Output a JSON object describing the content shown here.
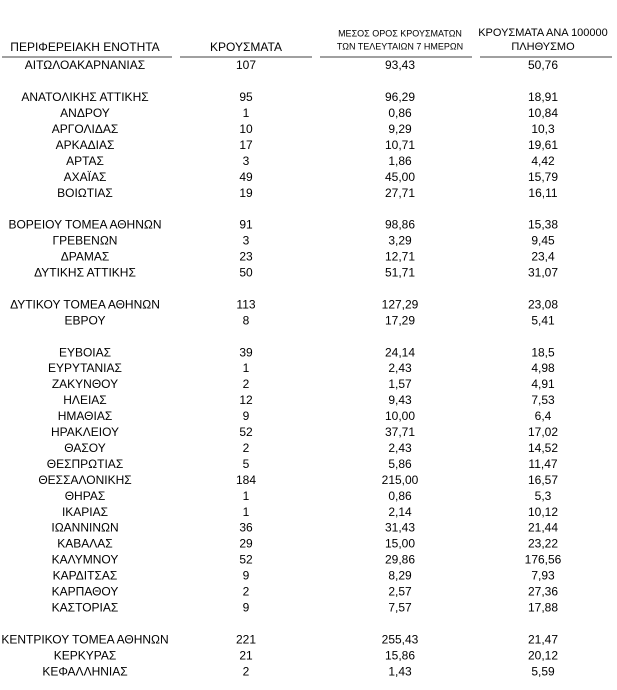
{
  "table": {
    "header": {
      "region": "ΠΕΡΙΦΕΡΕΙΑΚΗ ΕΝΟΤΗΤΑ",
      "cases": "ΚΡΟΥΣΜΑΤΑ",
      "average": [
        "ΜΕΣΟΣ ΟΡΟΣ ΚΡΟΥΣΜΑΤΩΝ",
        "ΤΩΝ ΤΕΛΕΥΤΑΙΩΝ 7 ΗΜΕΡΩΝ"
      ],
      "per_capita": [
        "ΚΡΟΥΣΜΑΤΑ ΑΝΑ 100000",
        "ΠΛΗΘΥΣΜΟ"
      ]
    },
    "groups": [
      [
        [
          "ΑΙΤΩΛΟΑΚΑΡΝΑΝΙΑΣ",
          "107",
          "93,43",
          "50,76"
        ]
      ],
      [
        [
          "ΑΝΑΤΟΛΙΚΗΣ ΑΤΤΙΚΗΣ",
          "95",
          "96,29",
          "18,91"
        ],
        [
          "ΑΝΔΡΟΥ",
          "1",
          "0,86",
          "10,84"
        ],
        [
          "ΑΡΓΟΛΙΔΑΣ",
          "10",
          "9,29",
          "10,3"
        ],
        [
          "ΑΡΚΑΔΙΑΣ",
          "17",
          "10,71",
          "19,61"
        ],
        [
          "ΑΡΤΑΣ",
          "3",
          "1,86",
          "4,42"
        ],
        [
          "ΑΧΑΪΑΣ",
          "49",
          "45,00",
          "15,79"
        ],
        [
          "ΒΟΙΩΤΙΑΣ",
          "19",
          "27,71",
          "16,11"
        ]
      ],
      [
        [
          "ΒΟΡΕΙΟΥ ΤΟΜΕΑ ΑΘΗΝΩΝ",
          "91",
          "98,86",
          "15,38"
        ],
        [
          "ΓΡΕΒΕΝΩΝ",
          "3",
          "3,29",
          "9,45"
        ],
        [
          "ΔΡΑΜΑΣ",
          "23",
          "12,71",
          "23,4"
        ],
        [
          "ΔΥΤΙΚΗΣ ΑΤΤΙΚΗΣ",
          "50",
          "51,71",
          "31,07"
        ]
      ],
      [
        [
          "ΔΥΤΙΚΟΥ ΤΟΜΕΑ ΑΘΗΝΩΝ",
          "113",
          "127,29",
          "23,08"
        ],
        [
          "ΕΒΡΟΥ",
          "8",
          "17,29",
          "5,41"
        ]
      ],
      [
        [
          "ΕΥΒΟΙΑΣ",
          "39",
          "24,14",
          "18,5"
        ],
        [
          "ΕΥΡΥΤΑΝΙΑΣ",
          "1",
          "2,43",
          "4,98"
        ],
        [
          "ΖΑΚΥΝΘΟΥ",
          "2",
          "1,57",
          "4,91"
        ],
        [
          "ΗΛΕΙΑΣ",
          "12",
          "9,43",
          "7,53"
        ],
        [
          "ΗΜΑΘΙΑΣ",
          "9",
          "10,00",
          "6,4"
        ],
        [
          "ΗΡΑΚΛΕΙΟΥ",
          "52",
          "37,71",
          "17,02"
        ],
        [
          "ΘΑΣΟΥ",
          "2",
          "2,43",
          "14,52"
        ],
        [
          "ΘΕΣΠΡΩΤΙΑΣ",
          "5",
          "5,86",
          "11,47"
        ],
        [
          "ΘΕΣΣΑΛΟΝΙΚΗΣ",
          "184",
          "215,00",
          "16,57"
        ],
        [
          "ΘΗΡΑΣ",
          "1",
          "0,86",
          "5,3"
        ],
        [
          "ΙΚΑΡΙΑΣ",
          "1",
          "2,14",
          "10,12"
        ],
        [
          "ΙΩΑΝΝΙΝΩΝ",
          "36",
          "31,43",
          "21,44"
        ],
        [
          "ΚΑΒΑΛΑΣ",
          "29",
          "15,00",
          "23,22"
        ],
        [
          "ΚΑΛΥΜΝΟΥ",
          "52",
          "29,86",
          "176,56"
        ],
        [
          "ΚΑΡΔΙΤΣΑΣ",
          "9",
          "8,29",
          "7,93"
        ],
        [
          "ΚΑΡΠΑΘΟΥ",
          "2",
          "2,57",
          "27,36"
        ],
        [
          "ΚΑΣΤΟΡΙΑΣ",
          "9",
          "7,57",
          "17,88"
        ]
      ],
      [
        [
          "ΚΕΝΤΡΙΚΟΥ ΤΟΜΕΑ ΑΘΗΝΩΝ",
          "221",
          "255,43",
          "21,47"
        ],
        [
          "ΚΕΡΚΥΡΑΣ",
          "21",
          "15,86",
          "20,12"
        ],
        [
          "ΚΕΦΑΛΛΗΝΙΑΣ",
          "2",
          "1,43",
          "5,59"
        ]
      ]
    ]
  }
}
